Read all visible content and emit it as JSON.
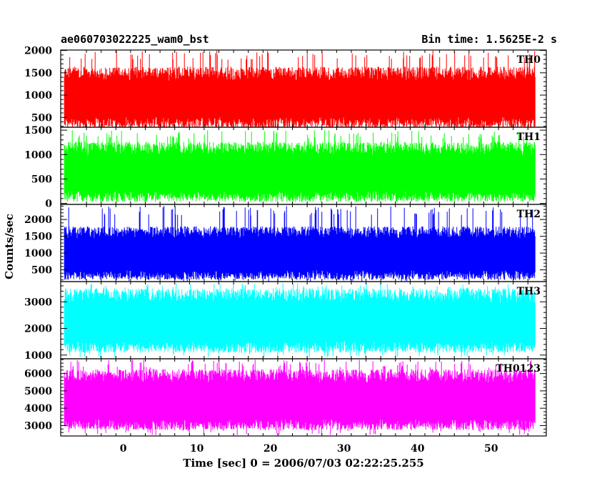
{
  "header": {
    "title": "ae060703022225_wam0_bst",
    "bin_time": "Bin time: 1.5625E-2 s"
  },
  "chart_data": {
    "type": "line",
    "xlabel": "Time [sec] 0 = 2006/07/03 02:22:25.255",
    "ylabel": "Counts/sec",
    "xlim": [
      -8.5,
      57.5
    ],
    "data_x_range": [
      -8,
      56
    ],
    "x_ticks": [
      0,
      10,
      20,
      30,
      40,
      50
    ],
    "x_tick_labels": [
      "0",
      "10",
      "20",
      "30",
      "40",
      "50"
    ],
    "bin_time_s": 0.015625,
    "grid": false,
    "panels": [
      {
        "name": "TH0",
        "color": "#ff0000",
        "ylim": [
          280,
          2010
        ],
        "ticks": [
          500,
          1000,
          1500,
          2000
        ],
        "tick_labels": [
          "500",
          "1000",
          "1500",
          "2000"
        ],
        "mean": 950,
        "typical_low": 300,
        "typical_high": 1550,
        "min": 250,
        "max": 2000
      },
      {
        "name": "TH1",
        "color": "#00ff00",
        "ylim": [
          -20,
          1560
        ],
        "ticks": [
          0,
          500,
          1000,
          1500
        ],
        "tick_labels": [
          "0",
          "500",
          "1000",
          "1500"
        ],
        "mean": 650,
        "typical_low": 80,
        "typical_high": 1200,
        "min": 30,
        "max": 1500
      },
      {
        "name": "TH2",
        "color": "#0000ff",
        "ylim": [
          150,
          2450
        ],
        "ticks": [
          500,
          1000,
          1500,
          2000
        ],
        "tick_labels": [
          "500",
          "1000",
          "1500",
          "2000"
        ],
        "mean": 1000,
        "typical_low": 350,
        "typical_high": 1800,
        "min": 150,
        "max": 2400
      },
      {
        "name": "TH3",
        "color": "#00ffff",
        "ylim": [
          860,
          3760
        ],
        "ticks": [
          1000,
          2000,
          3000
        ],
        "tick_labels": [
          "1000",
          "2000",
          "3000"
        ],
        "mean": 2300,
        "typical_low": 1100,
        "typical_high": 3300,
        "min": 900,
        "max": 3700
      },
      {
        "name": "TH0123",
        "color": "#ff00ff",
        "ylim": [
          2400,
          6850
        ],
        "ticks": [
          3000,
          4000,
          5000,
          6000
        ],
        "tick_labels": [
          "3000",
          "4000",
          "5000",
          "6000"
        ],
        "mean": 4500,
        "typical_low": 3000,
        "typical_high": 6200,
        "min": 2450,
        "max": 6800
      }
    ]
  }
}
